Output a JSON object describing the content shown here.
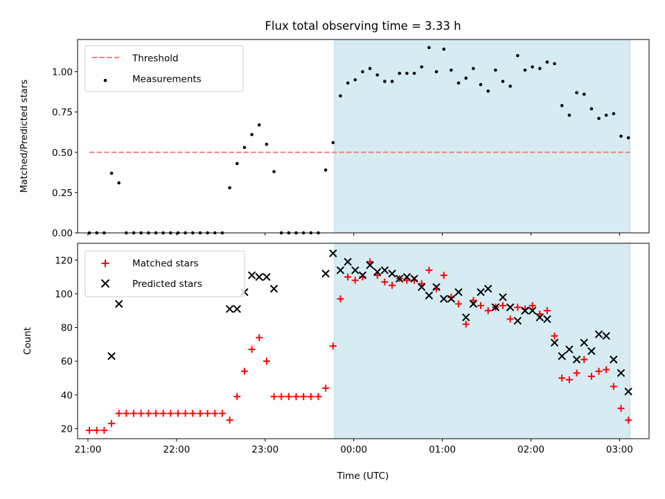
{
  "chart_data": {
    "title": "Flux total observing time = 3.33 h",
    "xlabel": "Time (UTC)",
    "xlim": [
      "20:53",
      "03:20"
    ],
    "xticks": [
      "21:00",
      "22:00",
      "23:00",
      "00:00",
      "01:00",
      "02:00",
      "03:00"
    ],
    "shaded_interval": {
      "start": "23:47",
      "end": "03:07",
      "color": "#add8e6"
    },
    "panels": [
      {
        "type": "scatter",
        "ylabel": "Matched/Predicted stars",
        "ylim": [
          0,
          1.2
        ],
        "yticks": [
          "0.00",
          "0.25",
          "0.50",
          "0.75",
          "1.00"
        ],
        "legend_position": "top-left",
        "threshold": {
          "name": "Threshold",
          "value": 0.5,
          "start": "21:01",
          "end": "03:07",
          "color": "#f08080"
        },
        "series": [
          {
            "name": "Measurements",
            "marker": "dot",
            "color": "#000000",
            "points": [
              [
                "21:01",
                0.0
              ],
              [
                "21:06",
                0.0
              ],
              [
                "21:11",
                0.0
              ],
              [
                "21:16",
                0.37
              ],
              [
                "21:21",
                0.31
              ],
              [
                "21:26",
                0.0
              ],
              [
                "21:31",
                0.0
              ],
              [
                "21:36",
                0.0
              ],
              [
                "21:41",
                0.0
              ],
              [
                "21:46",
                0.0
              ],
              [
                "21:51",
                0.0
              ],
              [
                "21:56",
                0.0
              ],
              [
                "22:01",
                0.0
              ],
              [
                "22:06",
                0.0
              ],
              [
                "22:11",
                0.0
              ],
              [
                "22:16",
                0.0
              ],
              [
                "22:21",
                0.0
              ],
              [
                "22:26",
                0.0
              ],
              [
                "22:31",
                0.0
              ],
              [
                "22:36",
                0.28
              ],
              [
                "22:41",
                0.43
              ],
              [
                "22:46",
                0.53
              ],
              [
                "22:51",
                0.61
              ],
              [
                "22:56",
                0.67
              ],
              [
                "23:01",
                0.55
              ],
              [
                "23:06",
                0.38
              ],
              [
                "23:11",
                0.0
              ],
              [
                "23:16",
                0.0
              ],
              [
                "23:21",
                0.0
              ],
              [
                "23:26",
                0.0
              ],
              [
                "23:31",
                0.0
              ],
              [
                "23:36",
                0.0
              ],
              [
                "23:41",
                0.39
              ],
              [
                "23:46",
                0.56
              ],
              [
                "23:51",
                0.85
              ],
              [
                "23:56",
                0.93
              ],
              [
                "00:01",
                0.95
              ],
              [
                "00:06",
                1.0
              ],
              [
                "00:11",
                1.02
              ],
              [
                "00:16",
                0.98
              ],
              [
                "00:21",
                0.94
              ],
              [
                "00:26",
                0.94
              ],
              [
                "00:31",
                0.99
              ],
              [
                "00:36",
                0.99
              ],
              [
                "00:41",
                0.99
              ],
              [
                "00:46",
                1.03
              ],
              [
                "00:51",
                1.15
              ],
              [
                "00:56",
                1.0
              ],
              [
                "01:01",
                1.14
              ],
              [
                "01:06",
                1.01
              ],
              [
                "01:11",
                0.93
              ],
              [
                "01:16",
                0.96
              ],
              [
                "01:21",
                1.02
              ],
              [
                "01:26",
                0.92
              ],
              [
                "01:31",
                0.88
              ],
              [
                "01:36",
                1.01
              ],
              [
                "01:41",
                0.94
              ],
              [
                "01:46",
                0.91
              ],
              [
                "01:51",
                1.1
              ],
              [
                "01:56",
                1.01
              ],
              [
                "02:01",
                1.03
              ],
              [
                "02:06",
                1.02
              ],
              [
                "02:11",
                1.06
              ],
              [
                "02:16",
                1.05
              ],
              [
                "02:21",
                0.79
              ],
              [
                "02:26",
                0.73
              ],
              [
                "02:31",
                0.87
              ],
              [
                "02:36",
                0.86
              ],
              [
                "02:41",
                0.77
              ],
              [
                "02:46",
                0.71
              ],
              [
                "02:51",
                0.73
              ],
              [
                "02:56",
                0.74
              ],
              [
                "03:01",
                0.6
              ],
              [
                "03:06",
                0.59
              ]
            ]
          }
        ]
      },
      {
        "type": "scatter",
        "ylabel": "Count",
        "ylim": [
          14,
          130
        ],
        "yticks": [
          "20",
          "40",
          "60",
          "80",
          "100",
          "120"
        ],
        "legend_position": "top-left",
        "series": [
          {
            "name": "Matched stars",
            "marker": "plus",
            "color": "#ff0000",
            "points": [
              [
                "21:01",
                19
              ],
              [
                "21:06",
                19
              ],
              [
                "21:11",
                19
              ],
              [
                "21:16",
                23
              ],
              [
                "21:21",
                29
              ],
              [
                "21:26",
                29
              ],
              [
                "21:31",
                29
              ],
              [
                "21:36",
                29
              ],
              [
                "21:41",
                29
              ],
              [
                "21:46",
                29
              ],
              [
                "21:51",
                29
              ],
              [
                "21:56",
                29
              ],
              [
                "22:01",
                29
              ],
              [
                "22:06",
                29
              ],
              [
                "22:11",
                29
              ],
              [
                "22:16",
                29
              ],
              [
                "22:21",
                29
              ],
              [
                "22:26",
                29
              ],
              [
                "22:31",
                29
              ],
              [
                "22:36",
                25
              ],
              [
                "22:41",
                39
              ],
              [
                "22:46",
                54
              ],
              [
                "22:51",
                67
              ],
              [
                "22:56",
                74
              ],
              [
                "23:01",
                60
              ],
              [
                "23:06",
                39
              ],
              [
                "23:11",
                39
              ],
              [
                "23:16",
                39
              ],
              [
                "23:21",
                39
              ],
              [
                "23:26",
                39
              ],
              [
                "23:31",
                39
              ],
              [
                "23:36",
                39
              ],
              [
                "23:41",
                44
              ],
              [
                "23:46",
                69
              ],
              [
                "23:51",
                97
              ],
              [
                "23:56",
                110
              ],
              [
                "00:01",
                108
              ],
              [
                "00:06",
                110
              ],
              [
                "00:11",
                119
              ],
              [
                "00:16",
                111
              ],
              [
                "00:21",
                107
              ],
              [
                "00:26",
                105
              ],
              [
                "00:31",
                109
              ],
              [
                "00:36",
                108
              ],
              [
                "00:41",
                108
              ],
              [
                "00:46",
                106
              ],
              [
                "00:51",
                114
              ],
              [
                "00:56",
                103
              ],
              [
                "01:01",
                111
              ],
              [
                "01:06",
                98
              ],
              [
                "01:11",
                94
              ],
              [
                "01:16",
                82
              ],
              [
                "01:21",
                96
              ],
              [
                "01:26",
                93
              ],
              [
                "01:31",
                90
              ],
              [
                "01:36",
                92
              ],
              [
                "01:41",
                93
              ],
              [
                "01:46",
                85
              ],
              [
                "01:51",
                92
              ],
              [
                "01:56",
                91
              ],
              [
                "02:01",
                93
              ],
              [
                "02:06",
                88
              ],
              [
                "02:11",
                90
              ],
              [
                "02:16",
                75
              ],
              [
                "02:21",
                50
              ],
              [
                "02:26",
                49
              ],
              [
                "02:31",
                53
              ],
              [
                "02:36",
                61
              ],
              [
                "02:41",
                51
              ],
              [
                "02:46",
                54
              ],
              [
                "02:51",
                55
              ],
              [
                "02:56",
                45
              ],
              [
                "03:01",
                32
              ],
              [
                "03:06",
                25
              ]
            ]
          },
          {
            "name": "Predicted stars",
            "marker": "x",
            "color": "#000000",
            "points": [
              [
                "21:16",
                63
              ],
              [
                "21:21",
                94
              ],
              [
                "22:36",
                91
              ],
              [
                "22:41",
                91
              ],
              [
                "22:46",
                101
              ],
              [
                "22:51",
                111
              ],
              [
                "22:56",
                110
              ],
              [
                "23:01",
                110
              ],
              [
                "23:06",
                103
              ],
              [
                "23:41",
                112
              ],
              [
                "23:46",
                124
              ],
              [
                "23:51",
                114
              ],
              [
                "23:56",
                119
              ],
              [
                "00:01",
                114
              ],
              [
                "00:06",
                111
              ],
              [
                "00:11",
                117
              ],
              [
                "00:16",
                113
              ],
              [
                "00:21",
                114
              ],
              [
                "00:26",
                112
              ],
              [
                "00:31",
                109
              ],
              [
                "00:36",
                110
              ],
              [
                "00:41",
                109
              ],
              [
                "00:46",
                104
              ],
              [
                "00:51",
                99
              ],
              [
                "00:56",
                104
              ],
              [
                "01:01",
                97
              ],
              [
                "01:06",
                97
              ],
              [
                "01:11",
                101
              ],
              [
                "01:16",
                86
              ],
              [
                "01:21",
                94
              ],
              [
                "01:26",
                101
              ],
              [
                "01:31",
                103
              ],
              [
                "01:36",
                92
              ],
              [
                "01:41",
                98
              ],
              [
                "01:46",
                92
              ],
              [
                "01:51",
                84
              ],
              [
                "01:56",
                90
              ],
              [
                "02:01",
                90
              ],
              [
                "02:06",
                86
              ],
              [
                "02:11",
                85
              ],
              [
                "02:16",
                71
              ],
              [
                "02:21",
                63
              ],
              [
                "02:26",
                67
              ],
              [
                "02:31",
                61
              ],
              [
                "02:36",
                71
              ],
              [
                "02:41",
                66
              ],
              [
                "02:46",
                76
              ],
              [
                "02:51",
                75
              ],
              [
                "02:56",
                61
              ],
              [
                "03:01",
                53
              ],
              [
                "03:06",
                42
              ]
            ]
          }
        ]
      }
    ]
  }
}
